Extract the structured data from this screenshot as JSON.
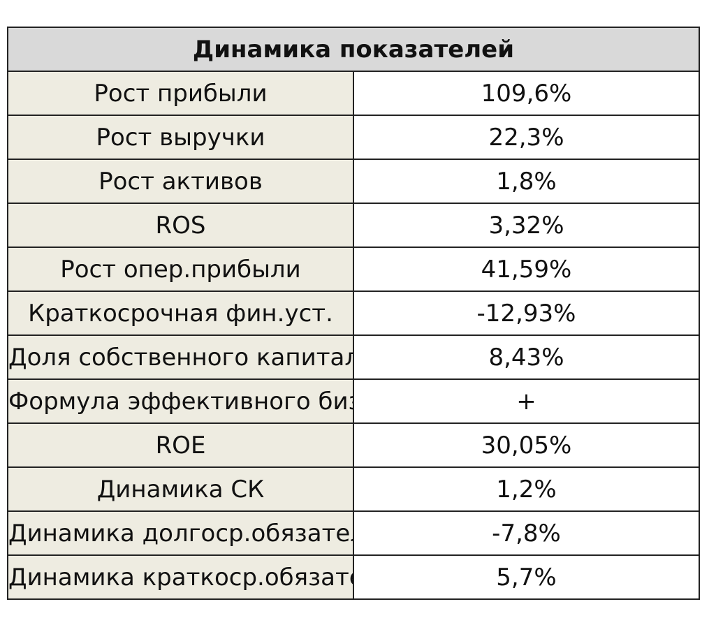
{
  "header": {
    "title": "Динамика показателей"
  },
  "table": {
    "rows": [
      [
        "Рост прибыли",
        "109,6%"
      ],
      [
        "Рост выручки",
        "22,3%"
      ],
      [
        "Рост активов",
        "1,8%"
      ],
      [
        "ROS",
        "3,32%"
      ],
      [
        "Рост опер.прибыли",
        "41,59%"
      ],
      [
        "Краткосрочная фин.уст.",
        "-12,93%"
      ],
      [
        "Доля собственного капитала",
        "8,43%"
      ],
      [
        "Формула эффективного бизнеса",
        "+"
      ],
      [
        "ROE",
        "30,05%"
      ],
      [
        "Динамика СК",
        "1,2%"
      ],
      [
        "Динамика долгоср.обязательств",
        "-7,8%"
      ],
      [
        "Динамика краткоср.обязательств",
        "5,7%"
      ]
    ]
  }
}
